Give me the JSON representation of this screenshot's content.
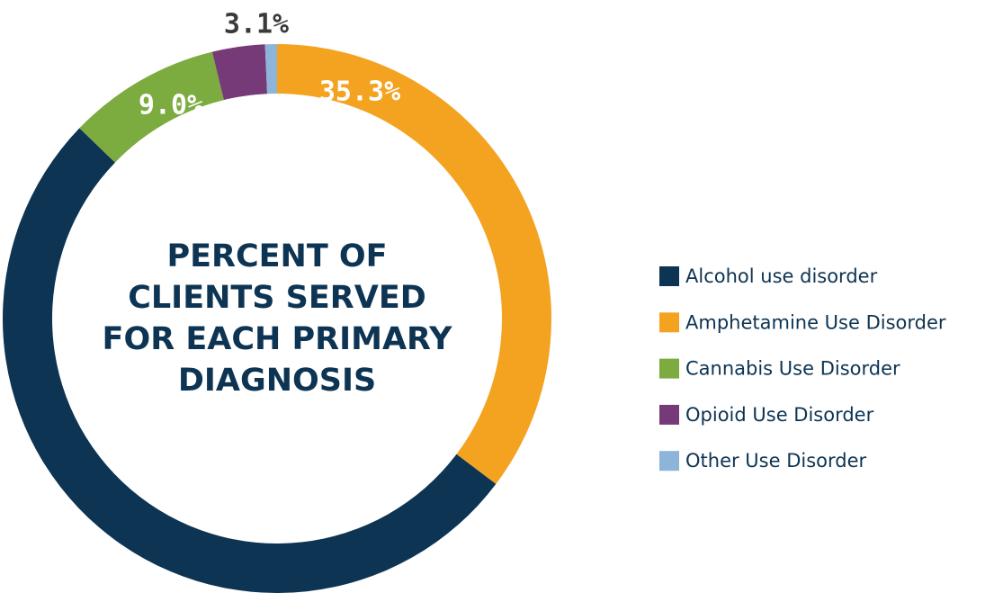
{
  "chart_data": {
    "type": "donut",
    "title": "PERCENT OF CLIENTS SERVED FOR EACH PRIMARY DIAGNOSIS",
    "categories": [
      "Alcohol use disorder",
      "Amphetamine Use Disorder",
      "Cannabis Use Disorder",
      "Opioid Use Disorder",
      "Other Use Disorder"
    ],
    "values": [
      51.9,
      35.3,
      9.0,
      3.1,
      0.7
    ],
    "value_labels": [
      null,
      "35.3%",
      "9.0%",
      "3.1%",
      null
    ],
    "colors": [
      "#0d3453",
      "#f4a321",
      "#7cab3f",
      "#773a78",
      "#8db4d9"
    ],
    "legend": "right"
  }
}
